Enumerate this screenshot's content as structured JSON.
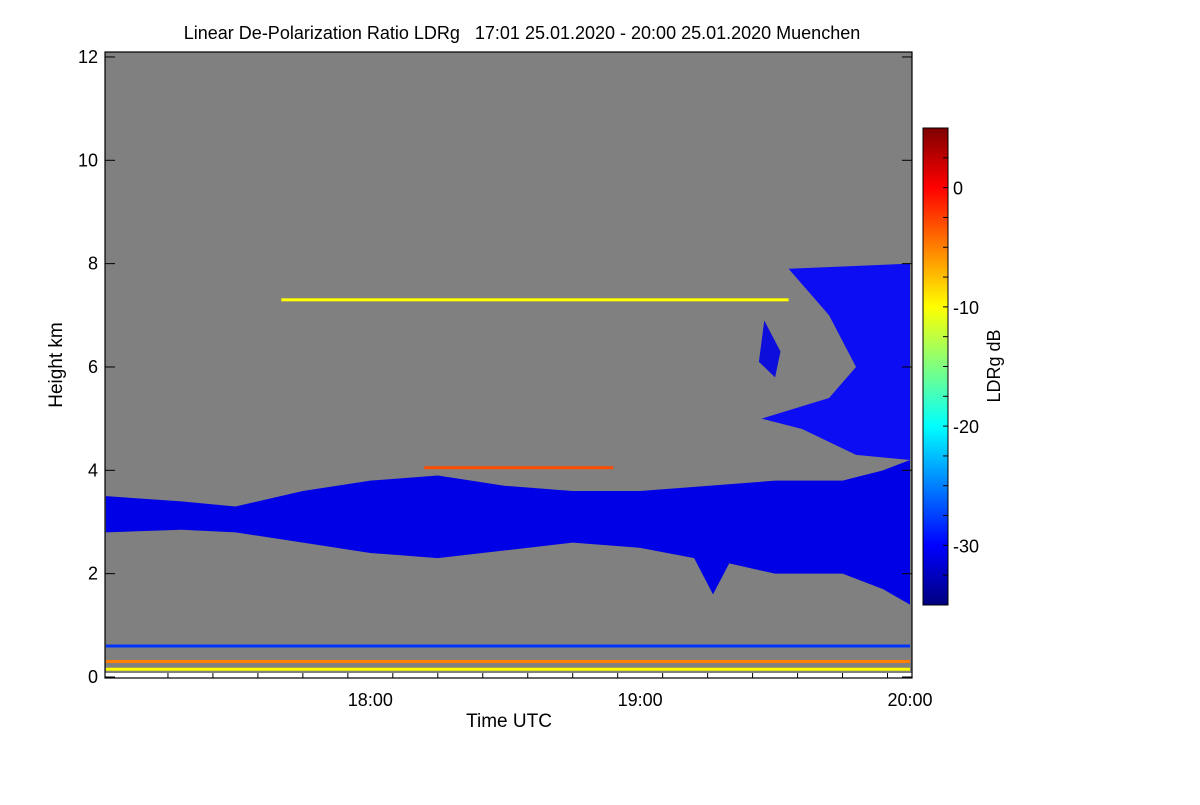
{
  "chart_data": {
    "type": "heatmap",
    "title": "Linear De-Polarization Ratio LDRg   17:01 25.01.2020 - 20:00 25.01.2020 Muenchen",
    "xlabel": "Time UTC",
    "ylabel": "Height km",
    "xlim_hours": [
      17.0167,
      20.0
    ],
    "ylim": [
      0,
      12
    ],
    "x_ticks": [
      {
        "v": 18,
        "label": "18:00"
      },
      {
        "v": 19,
        "label": "19:00"
      },
      {
        "v": 20,
        "label": "20:00"
      }
    ],
    "y_ticks": [
      {
        "v": 0,
        "label": "0"
      },
      {
        "v": 2,
        "label": "2"
      },
      {
        "v": 4,
        "label": "4"
      },
      {
        "v": 6,
        "label": "6"
      },
      {
        "v": 8,
        "label": "8"
      },
      {
        "v": 10,
        "label": "10"
      },
      {
        "v": 12,
        "label": "12"
      }
    ],
    "colorbar": {
      "label": "LDRg dB",
      "range": [
        -35,
        5
      ],
      "ticks": [
        {
          "v": 0,
          "label": "0"
        },
        {
          "v": -10,
          "label": "-10"
        },
        {
          "v": -20,
          "label": "-20"
        },
        {
          "v": -30,
          "label": "-30"
        }
      ],
      "colormap": "jet"
    },
    "no_data_color": "#808080",
    "features": [
      {
        "name": "main-cloud-layer",
        "ldr": -31,
        "top": [
          [
            17.02,
            3.5
          ],
          [
            17.3,
            3.4
          ],
          [
            17.5,
            3.3
          ],
          [
            17.75,
            3.6
          ],
          [
            18.0,
            3.8
          ],
          [
            18.25,
            3.9
          ],
          [
            18.5,
            3.7
          ],
          [
            18.75,
            3.6
          ],
          [
            19.0,
            3.6
          ],
          [
            19.25,
            3.7
          ],
          [
            19.5,
            3.8
          ],
          [
            19.75,
            3.8
          ],
          [
            19.9,
            4.0
          ],
          [
            20.0,
            4.2
          ]
        ],
        "base": [
          [
            17.02,
            2.8
          ],
          [
            17.3,
            2.85
          ],
          [
            17.5,
            2.8
          ],
          [
            17.75,
            2.6
          ],
          [
            18.0,
            2.4
          ],
          [
            18.25,
            2.3
          ],
          [
            18.5,
            2.45
          ],
          [
            18.75,
            2.6
          ],
          [
            19.0,
            2.5
          ],
          [
            19.2,
            2.3
          ],
          [
            19.27,
            1.6
          ],
          [
            19.33,
            2.2
          ],
          [
            19.5,
            2.0
          ],
          [
            19.75,
            2.0
          ],
          [
            19.9,
            1.7
          ],
          [
            20.0,
            1.4
          ]
        ]
      },
      {
        "name": "cirrus-fall-streaks",
        "ldr": -30,
        "polygon": [
          [
            19.45,
            5.0
          ],
          [
            19.6,
            4.8
          ],
          [
            19.8,
            4.3
          ],
          [
            20.0,
            4.2
          ],
          [
            20.0,
            8.0
          ],
          [
            19.55,
            7.9
          ],
          [
            19.7,
            7.0
          ],
          [
            19.8,
            6.0
          ],
          [
            19.7,
            5.4
          ]
        ]
      },
      {
        "name": "isolated-cloud-6km",
        "ldr": -31,
        "polygon": [
          [
            19.44,
            6.1
          ],
          [
            19.5,
            5.8
          ],
          [
            19.52,
            6.3
          ],
          [
            19.46,
            6.9
          ]
        ]
      },
      {
        "name": "thin-layer-7.3km",
        "ldr": -10,
        "t": [
          17.67,
          19.55
        ],
        "h": 7.3
      },
      {
        "name": "thin-layer-4.05km",
        "ldr": -3,
        "t": [
          18.2,
          18.9
        ],
        "h": 4.05
      },
      {
        "name": "near-ground-line-0.6km",
        "ldr": -28,
        "t": [
          17.02,
          20.0
        ],
        "h": 0.6
      },
      {
        "name": "near-ground-line-0.3km",
        "ldr": -5,
        "t": [
          17.02,
          20.0
        ],
        "h": 0.3
      },
      {
        "name": "near-ground-line-0.15km",
        "ldr": -10,
        "t": [
          17.02,
          20.0
        ],
        "h": 0.15
      }
    ]
  }
}
